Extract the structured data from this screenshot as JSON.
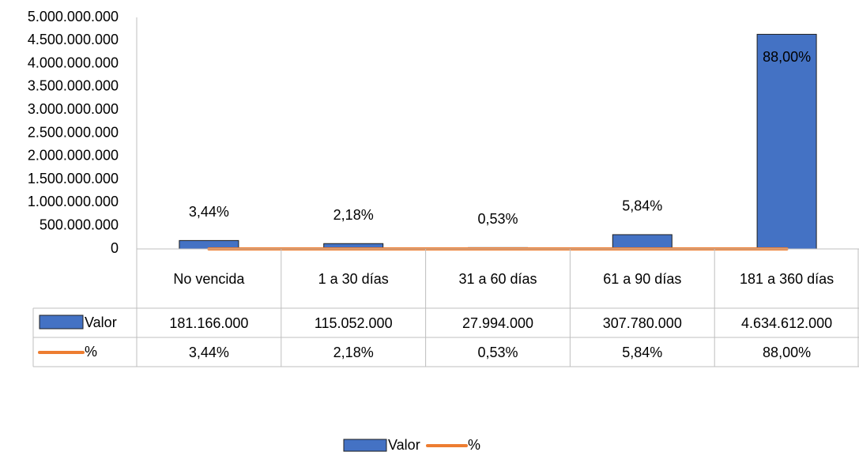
{
  "chart_data": {
    "type": "bar",
    "categories": [
      "No vencida",
      "1 a 30 días",
      "31 a 60 días",
      "61 a 90 días",
      "181 a 360 días"
    ],
    "series": [
      {
        "name": "Valor",
        "color": "#4472c4",
        "values": [
          181166000,
          115052000,
          27994000,
          307780000,
          4634612000
        ],
        "value_labels": [
          "181.166.000",
          "115.052.000",
          "27.994.000",
          "307.780.000",
          "4.634.612.000"
        ]
      },
      {
        "name": "%",
        "type": "line",
        "color": "#ed7d31",
        "values": [
          3.44,
          2.18,
          0.53,
          5.84,
          88.0
        ],
        "value_labels": [
          "3,44%",
          "2,18%",
          "0,53%",
          "5,84%",
          "88,00%"
        ]
      }
    ],
    "ylim": [
      0,
      5000000000
    ],
    "yticks": [
      0,
      {
        "value": 500000000,
        "label": "500.000.000"
      },
      {
        "value": 1000000000,
        "label": "1.000.000.000"
      },
      {
        "value": 1500000000,
        "label": "1.500.000.000"
      },
      {
        "value": 2000000000,
        "label": "2.000.000.000"
      },
      {
        "value": 2500000000,
        "label": "2.500.000.000"
      },
      {
        "value": 3000000000,
        "label": "3.000.000.000"
      },
      {
        "value": 3500000000,
        "label": "3.500.000.000"
      },
      {
        "value": 4000000000,
        "label": "4.000.000.000"
      },
      {
        "value": 4500000000,
        "label": "4.500.000.000"
      },
      {
        "value": 5000000000,
        "label": "5.000.000.000"
      }
    ],
    "grid": false,
    "legend": "bottom",
    "data_table": true
  }
}
